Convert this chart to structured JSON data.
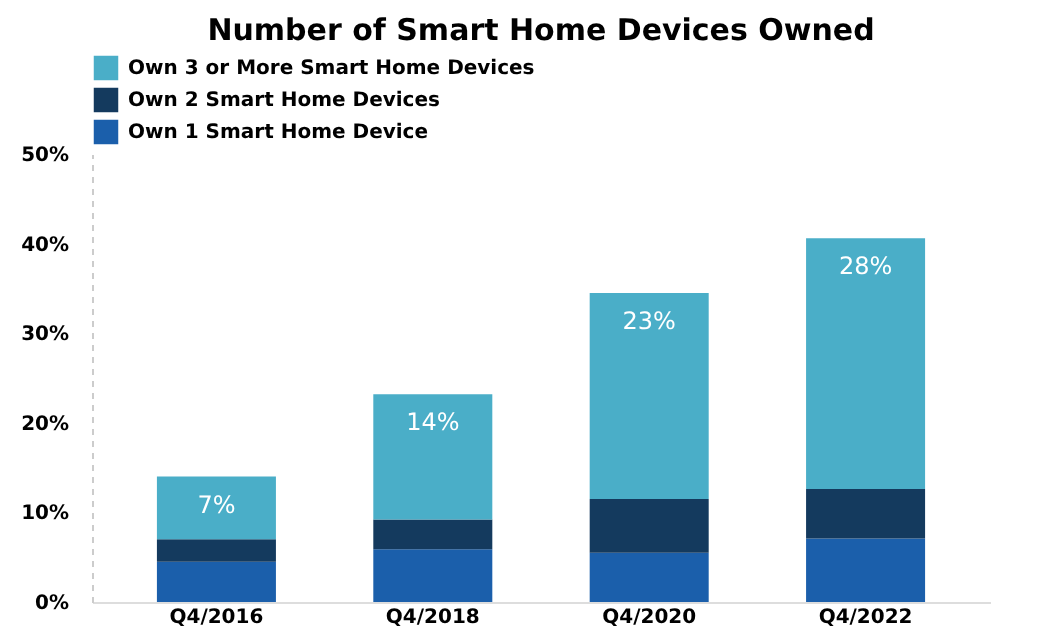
{
  "chart_data": {
    "type": "bar",
    "title": "Number of Smart Home Devices Owned",
    "stacked": true,
    "categories": [
      "Q4/2016",
      "Q4/2018",
      "Q4/2020",
      "Q4/2022"
    ],
    "series": [
      {
        "name": "Own 1 Smart Home Device",
        "color": "#1b5fab",
        "values": [
          4.5,
          5.9,
          5.5,
          7.1
        ]
      },
      {
        "name": "Own 2 Smart Home Devices",
        "color": "#143a5e",
        "values": [
          2.5,
          3.3,
          6.0,
          5.5
        ]
      },
      {
        "name": "Own 3 or More Smart Home Devices",
        "color": "#4aaec8",
        "values": [
          7,
          14,
          23,
          28
        ],
        "value_labels": [
          "7%",
          "14%",
          "23%",
          "28%"
        ]
      }
    ],
    "ylim": [
      0,
      50
    ],
    "yticks": [
      {
        "value": 0,
        "label": "0%"
      },
      {
        "value": 10,
        "label": "10%"
      },
      {
        "value": 20,
        "label": "20%"
      },
      {
        "value": 30,
        "label": "30%"
      },
      {
        "value": 40,
        "label": "40%"
      },
      {
        "value": 50,
        "label": "50%"
      }
    ],
    "grid": false,
    "legend": "top"
  }
}
